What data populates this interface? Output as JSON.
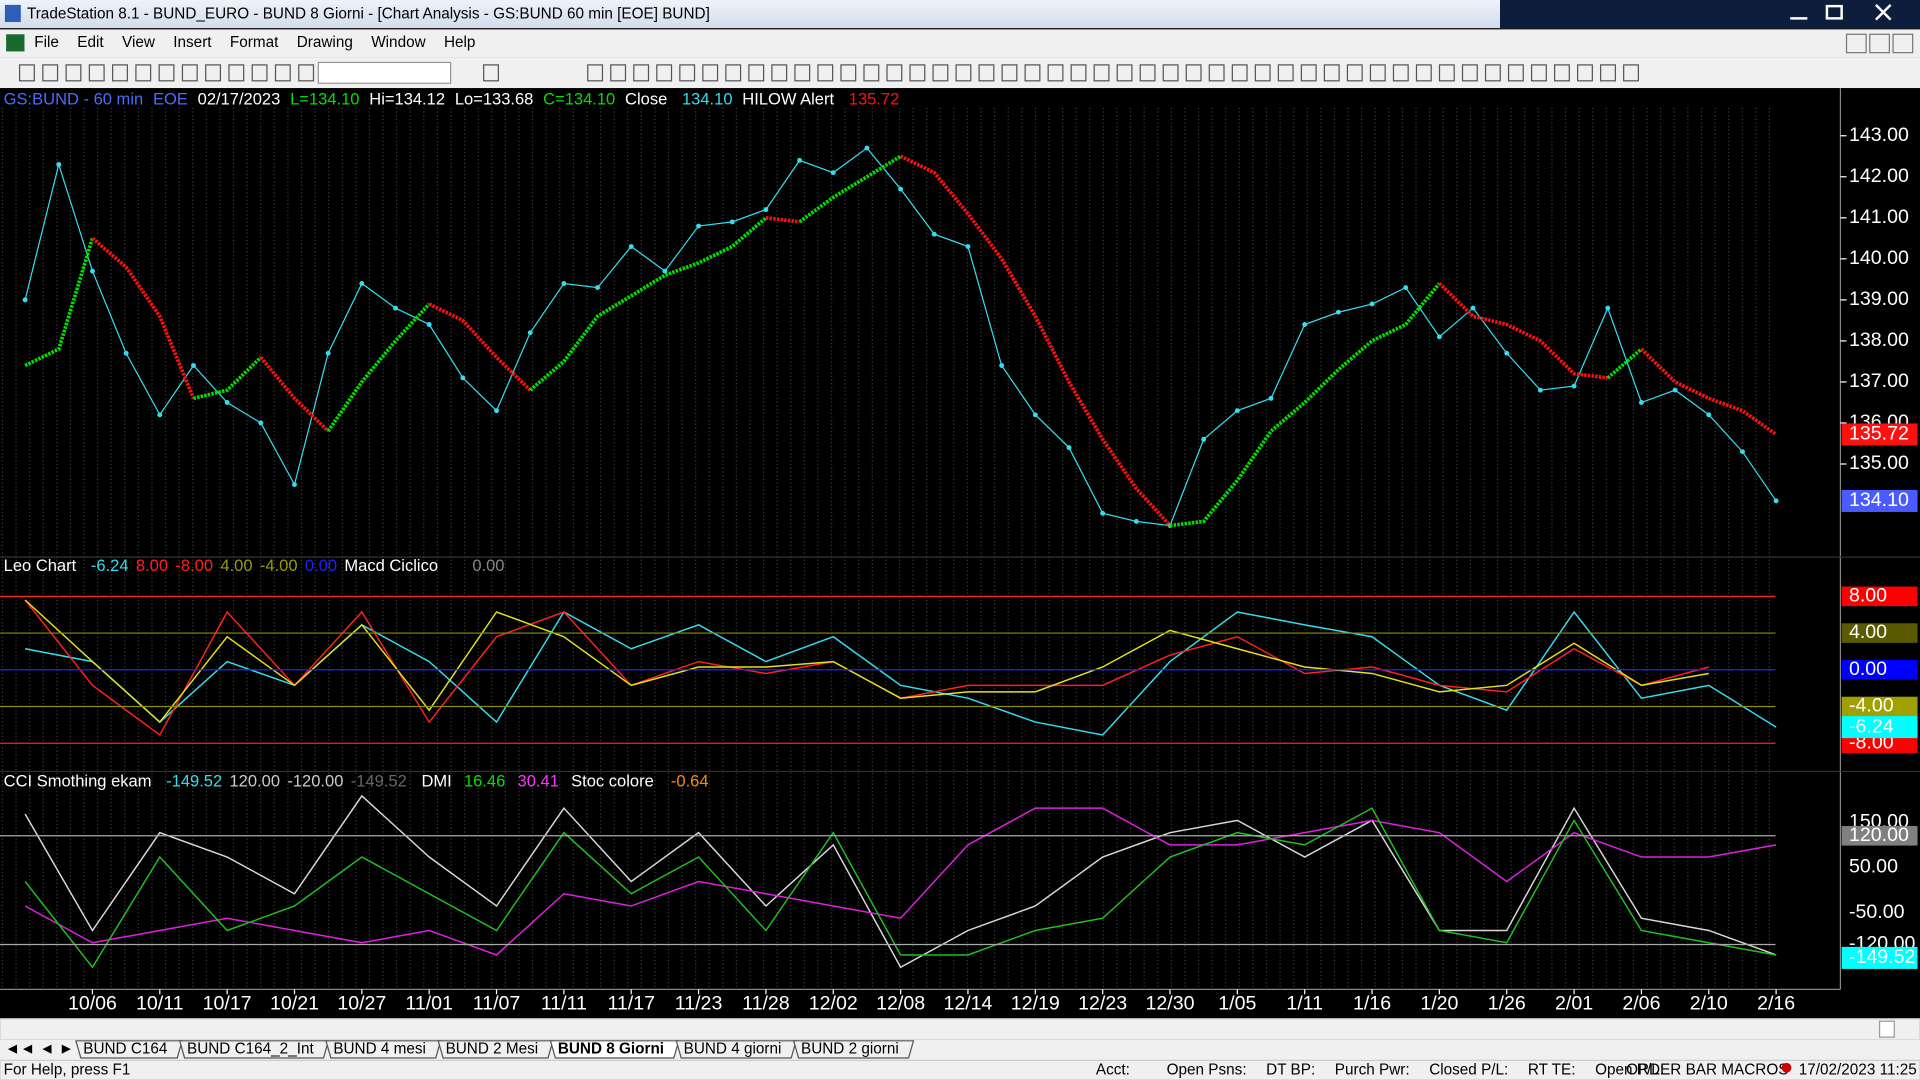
{
  "window": {
    "title": "TradeStation 8.1 - BUND_EURO - BUND 8 Giorni - [Chart Analysis - GS:BUND  60 min  [EOE] BUND]"
  },
  "menu": [
    "File",
    "Edit",
    "View",
    "Insert",
    "Format",
    "Drawing",
    "Window",
    "Help"
  ],
  "chart_data": [
    {
      "type": "line",
      "header": [
        "GS:BUND - 60 min",
        "EOE",
        "02/17/2023",
        "L=134.10",
        "Hi=134.12",
        "Lo=133.68",
        "C=134.10"
      ],
      "header_colors": [
        "#4a6cff",
        "#4a6cff",
        "#ffffff",
        "#00e000",
        "#ffffff",
        "#ffffff",
        "#00e000"
      ],
      "categories": [
        null,
        null,
        "10/06",
        null,
        "10/11",
        null,
        "10/17",
        null,
        "10/21",
        null,
        "10/27",
        null,
        "11/01",
        null,
        "11/07",
        null,
        "11/11",
        null,
        "11/17",
        null,
        "11/23",
        null,
        "11/28",
        null,
        "12/02",
        null,
        "12/08",
        null,
        "12/14",
        null,
        "12/19",
        null,
        "12/23",
        null,
        "12/30",
        null,
        "1/05",
        null,
        "1/11",
        null,
        "1/16",
        null,
        "1/20",
        null,
        "1/26",
        null,
        "2/01",
        null,
        "2/06",
        null,
        "2/10",
        null,
        "2/16"
      ],
      "series": [
        {
          "name": "Close",
          "color": "#33ddee",
          "value_label": "134.10",
          "values": [
            139.0,
            142.3,
            139.7,
            137.7,
            136.2,
            137.4,
            136.5,
            136.0,
            134.5,
            137.7,
            139.4,
            138.8,
            138.4,
            137.1,
            136.3,
            138.2,
            139.4,
            139.3,
            140.3,
            139.7,
            140.8,
            140.9,
            141.2,
            142.4,
            142.1,
            142.7,
            141.7,
            140.6,
            140.3,
            137.4,
            136.2,
            135.4,
            133.8,
            133.6,
            133.5,
            135.6,
            136.3,
            136.6,
            138.4,
            138.7,
            138.9,
            139.3,
            138.1,
            138.8,
            137.7,
            136.8,
            136.9,
            138.8,
            136.5,
            136.8,
            136.2,
            135.3,
            134.1
          ]
        },
        {
          "name": "HILOW Alert",
          "color": "#ff1010",
          "up_color": "#00e000",
          "value_label": "135.72",
          "values": [
            137.4,
            137.8,
            140.5,
            139.8,
            138.6,
            136.6,
            136.8,
            137.6,
            136.6,
            135.8,
            137.0,
            138.0,
            138.9,
            138.5,
            137.6,
            136.8,
            137.5,
            138.6,
            139.1,
            139.6,
            139.9,
            140.3,
            141.0,
            140.9,
            141.5,
            142.0,
            142.5,
            142.1,
            141.1,
            140.0,
            138.6,
            137.0,
            135.6,
            134.4,
            133.5,
            133.6,
            134.6,
            135.8,
            136.5,
            137.3,
            138.0,
            138.4,
            139.4,
            138.6,
            138.4,
            138.0,
            137.2,
            137.1,
            137.8,
            137.0,
            136.6,
            136.3,
            135.72
          ]
        }
      ],
      "last_labels": [
        {
          "value": 135.72,
          "label": "135.72",
          "color": "#ff1010"
        },
        {
          "value": 134.1,
          "label": "134.10",
          "color": "#4a5cff"
        }
      ],
      "ylim": [
        132.73,
        144.16
      ],
      "yticks": [
        {
          "value": 135,
          "label": "135.00"
        },
        {
          "value": 136,
          "label": "136.00"
        },
        {
          "value": 137,
          "label": "137.00"
        },
        {
          "value": 138,
          "label": "138.00"
        },
        {
          "value": 139,
          "label": "139.00"
        },
        {
          "value": 140,
          "label": "140.00"
        },
        {
          "value": 141,
          "label": "141.00"
        },
        {
          "value": 142,
          "label": "142.00"
        },
        {
          "value": 143,
          "label": "143.00"
        }
      ]
    },
    {
      "type": "line",
      "header": [
        "-6.24",
        "8.00",
        "-8.00",
        "4.00",
        "-4.00",
        "0.00",
        "Macd Ciclico",
        "0.00"
      ],
      "header_colors": [
        "#33ddee",
        "#ff2020",
        "#ff2020",
        "#9a9a10",
        "#9a9a10",
        "#2020ff",
        "#ffffff",
        "#888888"
      ],
      "series": [
        {
          "name": "Leo Chart",
          "color": "#33ddee",
          "values": [
            2.3,
            0.9,
            -5.7,
            0.9,
            -1.7,
            4.9,
            0.9,
            -5.7,
            6.3,
            2.3,
            4.9,
            0.9,
            3.6,
            -1.7,
            -3.1,
            -5.7,
            -7.1,
            0.9,
            6.3,
            4.9,
            3.6,
            -1.7,
            -4.4,
            6.3,
            -3.1,
            -1.7,
            -6.24
          ]
        },
        {
          "color": "#ff2020",
          "values": [
            7.6,
            -1.7,
            -7.1,
            6.3,
            -1.7,
            6.3,
            -5.7,
            3.6,
            6.3,
            -1.7,
            0.9,
            -0.4,
            0.9,
            -3.1,
            -1.7,
            -1.7,
            -1.7,
            1.6,
            3.6,
            -0.4,
            0.3,
            -1.7,
            -2.4,
            2.3,
            -1.7,
            0.3,
            null
          ]
        },
        {
          "color": "#e0e020",
          "values": [
            7.6,
            0.9,
            -5.7,
            3.6,
            -1.7,
            4.9,
            -4.4,
            6.3,
            3.6,
            -1.7,
            0.3,
            0.3,
            0.9,
            -3.1,
            -2.4,
            -2.4,
            0.3,
            4.3,
            2.3,
            0.3,
            -0.4,
            -2.4,
            -1.7,
            2.9,
            -1.7,
            -0.4,
            null
          ]
        }
      ],
      "ylim": [
        -11.07,
        12.27
      ],
      "yticks": [
        {
          "value": 8,
          "label": "8.00"
        },
        {
          "value": 4,
          "label": "4.00"
        },
        {
          "value": 0,
          "label": "0.00"
        },
        {
          "value": -4,
          "label": "-4.00"
        },
        {
          "value": -8,
          "label": "-8.00"
        }
      ],
      "level_colors": [
        "#ff2020",
        "#8a8a10",
        "#2020ff",
        "#8a8a10",
        "#ff2020"
      ],
      "label_backgrounds": [
        "#ff0000",
        "#5a5a00",
        "#0000ff",
        "#a0a000",
        "#ff0000"
      ],
      "last_labels": [
        {
          "value": -6.24,
          "label": "-6.24",
          "color": "#00ffff"
        }
      ]
    },
    {
      "type": "line",
      "header": [
        "-149.52",
        "120.00",
        "-120.00",
        "-149.52",
        "16.46",
        "30.41",
        "Stoc colore",
        "-0.64"
      ],
      "header_colors": [
        "#33ddee",
        "#cccccc",
        "#cccccc",
        "#666666",
        "#00e000",
        "#ff33ff",
        "#ffffff",
        "#ff8c00"
      ],
      "series": [
        {
          "name": "CCI Smothing ekam",
          "color": "#d8d8d8",
          "values": [
            168,
            -89,
            127,
            73,
            -8,
            208,
            73,
            -35,
            181,
            19,
            127,
            -35,
            100,
            -170,
            -89,
            -35,
            73,
            127,
            154,
            73,
            154,
            -89,
            -89,
            181,
            -62,
            -89,
            -143
          ]
        },
        {
          "name": "DMI",
          "color": "#e020e0",
          "values": [
            -35,
            -116,
            -89,
            -62,
            -89,
            -116,
            -89,
            -143,
            -8,
            -35,
            19,
            -8,
            -35,
            -62,
            100,
            181,
            181,
            100,
            100,
            127,
            154,
            127,
            19,
            127,
            73,
            73,
            100
          ]
        },
        {
          "color": "#20c020",
          "values": [
            19,
            -170,
            73,
            -89,
            -35,
            73,
            -8,
            -89,
            127,
            -8,
            73,
            -89,
            127,
            -143,
            -143,
            -89,
            -62,
            73,
            127,
            100,
            181,
            -89,
            -116,
            154,
            -89,
            -116,
            -143
          ]
        }
      ],
      "ylim": [
        -219,
        262
      ],
      "yticks": [
        {
          "value": 150,
          "label": "150.00"
        },
        {
          "value": 120,
          "label": "120.00"
        },
        {
          "value": 50,
          "label": "50.00"
        },
        {
          "value": -50,
          "label": "-50.00"
        },
        {
          "value": -120,
          "label": "-120.00"
        }
      ],
      "level_colors": [
        "#000000",
        "#aaaaaa",
        "#000000",
        "#000000",
        "#aaaaaa"
      ],
      "label_backgrounds": [
        "#000000",
        "#808080",
        "#000000",
        "#000000",
        "#000000"
      ],
      "last_labels": [
        {
          "value": -149.52,
          "label": "-149.52",
          "color": "#00ffff"
        }
      ]
    }
  ],
  "tabs": [
    "BUND C164",
    "BUND C164_2_Int",
    "BUND 4 mesi",
    "BUND  2 Mesi",
    "BUND 8 Giorni",
    "BUND 4 giorni",
    "BUND 2 giorni"
  ],
  "active_tab": 4,
  "status": {
    "help": "For Help, press F1",
    "fields": [
      "Acct:",
      "Open Psns:",
      "DT BP:",
      "Purch Pwr:",
      "Closed P/L:",
      "RT TE:",
      "Open P/L:"
    ],
    "macros": "ORDER BAR MACROS",
    "datetime": "17/02/2023 11:25"
  }
}
